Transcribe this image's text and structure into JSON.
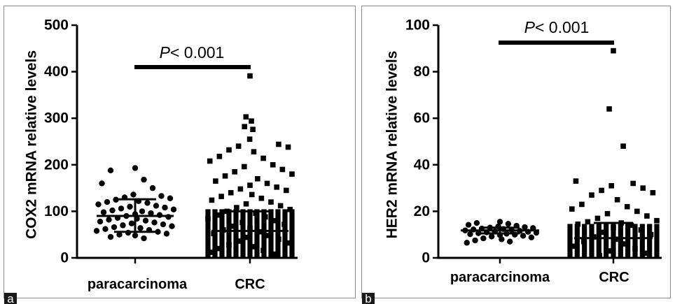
{
  "chart_data": [
    {
      "panel_label": "a",
      "type": "scatter",
      "categories": [
        "paracarcinoma",
        "CRC"
      ],
      "ylabel": "COX2 mRNA relative levels",
      "ylim": [
        0,
        500
      ],
      "yticks": [
        0,
        100,
        200,
        300,
        400,
        500
      ],
      "significance": {
        "prefix": "P",
        "text": "< 0.001"
      },
      "series": [
        {
          "category": "paracarcinoma",
          "marker": "circle",
          "mean": 90,
          "sd_low": 56,
          "sd_high": 126,
          "values": [
            193,
            188,
            168,
            160,
            150,
            136,
            133,
            130,
            128,
            125,
            122,
            120,
            118,
            115,
            112,
            110,
            108,
            106,
            104,
            102,
            100,
            98,
            96,
            94,
            92,
            90,
            88,
            86,
            84,
            82,
            80,
            78,
            76,
            74,
            72,
            70,
            68,
            66,
            64,
            62,
            60,
            58,
            56,
            54,
            52,
            50,
            48,
            45,
            42
          ]
        },
        {
          "category": "CRC",
          "marker": "square",
          "mean": 58,
          "sd_low": 0,
          "sd_high": 100,
          "values": [
            391,
            303,
            294,
            282,
            276,
            255,
            244,
            240,
            238,
            232,
            228,
            218,
            214,
            208,
            200,
            196,
            190,
            185,
            180,
            176,
            170,
            165,
            160,
            156,
            152,
            148,
            145,
            140,
            136,
            132,
            128,
            124,
            120,
            116,
            112,
            108,
            104,
            100,
            96,
            92,
            88,
            84,
            80,
            76,
            72,
            68,
            64,
            60,
            56,
            52,
            48,
            44,
            40,
            36,
            32,
            28,
            24,
            20,
            16,
            12,
            8
          ]
        }
      ]
    },
    {
      "panel_label": "b",
      "type": "scatter",
      "categories": [
        "paracarcinoma",
        "CRC"
      ],
      "ylabel": "HER2 mRNA relative levels",
      "ylim": [
        0,
        100
      ],
      "yticks": [
        0,
        20,
        40,
        60,
        80,
        100
      ],
      "significance": {
        "prefix": "P",
        "text": "< 0.001"
      },
      "series": [
        {
          "category": "paracarcinoma",
          "marker": "circle",
          "mean": 11.8,
          "sd_low": 10.5,
          "sd_high": 13.0,
          "values": [
            15.5,
            15.0,
            14.6,
            14.2,
            13.8,
            13.5,
            13.2,
            13.0,
            12.8,
            12.6,
            12.4,
            12.2,
            12.0,
            11.8,
            11.6,
            11.4,
            11.2,
            11.0,
            10.8,
            10.6,
            10.4,
            10.2,
            10.0,
            9.8,
            9.5,
            9.2,
            8.8,
            8.4,
            8.0,
            7.5,
            7.0,
            6.5
          ]
        },
        {
          "category": "CRC",
          "marker": "square",
          "mean": 8.5,
          "sd_low": 0,
          "sd_high": 15,
          "values": [
            89,
            64,
            48,
            33,
            32,
            31,
            30,
            29,
            28,
            27,
            25,
            23,
            22,
            21,
            20,
            19,
            18,
            17,
            16,
            15.5,
            15,
            14.5,
            14,
            13,
            12,
            11,
            10,
            9,
            8,
            7,
            6,
            5,
            4,
            3,
            2,
            1
          ]
        }
      ]
    }
  ]
}
